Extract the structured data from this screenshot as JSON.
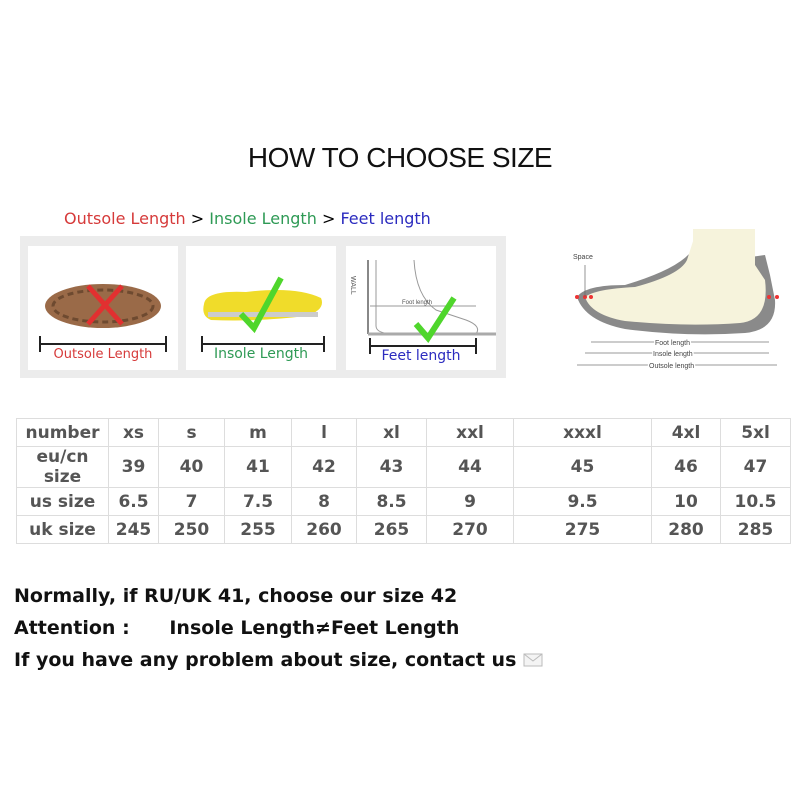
{
  "title": "HOW TO CHOOSE SIZE",
  "comparison": {
    "outsole": "Outsole Length",
    "sep": ">",
    "insole": "Insole Length",
    "feet": "Feet length",
    "colors": {
      "outsole": "#d63a3a",
      "insole": "#2e9a55",
      "feet": "#2b2bbf"
    }
  },
  "panels": [
    {
      "label": "Outsole Length",
      "icon": "cross-icon"
    },
    {
      "label": "Insole Length",
      "icon": "check-icon"
    },
    {
      "label": "Feet length",
      "icon": "check-icon",
      "wall": "WALL",
      "foot": "Foot length"
    }
  ],
  "diagram": {
    "space": "Space",
    "foot": "Foot length",
    "insole": "Insole length",
    "outsole": "Outsole length"
  },
  "table": {
    "rows": [
      [
        "number",
        "xs",
        "s",
        "m",
        "l",
        "xl",
        "xxl",
        "xxxl",
        "4xl",
        "5xl"
      ],
      [
        "eu/cn size",
        "39",
        "40",
        "41",
        "42",
        "43",
        "44",
        "45",
        "46",
        "47"
      ],
      [
        "us size",
        "6.5",
        "7",
        "7.5",
        "8",
        "8.5",
        "9",
        "9.5",
        "10",
        "10.5"
      ],
      [
        "uk size",
        "245",
        "250",
        "255",
        "260",
        "265",
        "270",
        "275",
        "280",
        "285"
      ]
    ]
  },
  "notes": {
    "line1": "Normally, if RU/UK 41, choose our size 42",
    "line2": "Attention :      Insole Length≠Feet Length",
    "line3": "If you have any problem about size, contact us",
    "mail_icon": "envelope-icon"
  }
}
